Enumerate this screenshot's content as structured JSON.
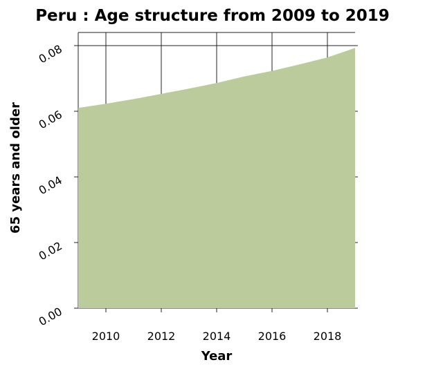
{
  "chart_data": {
    "type": "area",
    "title": "Peru : Age structure from 2009 to 2019",
    "xlabel": "Year",
    "ylabel": "65 years and older",
    "x": [
      2009,
      2010,
      2011,
      2012,
      2013,
      2014,
      2015,
      2016,
      2017,
      2018,
      2019
    ],
    "series": [
      {
        "values": [
          0.061,
          0.0623,
          0.0637,
          0.0653,
          0.0669,
          0.0686,
          0.0706,
          0.0723,
          0.0743,
          0.0764,
          0.0793
        ],
        "color": "#bccb9b"
      }
    ],
    "xlim": [
      2009,
      2019
    ],
    "ylim": [
      0,
      0.084
    ],
    "xticks": [
      "2010",
      "2012",
      "2014",
      "2016",
      "2018"
    ],
    "yticks": [
      "0.00",
      "0.02",
      "0.04",
      "0.06",
      "0.08"
    ],
    "grid": true
  }
}
